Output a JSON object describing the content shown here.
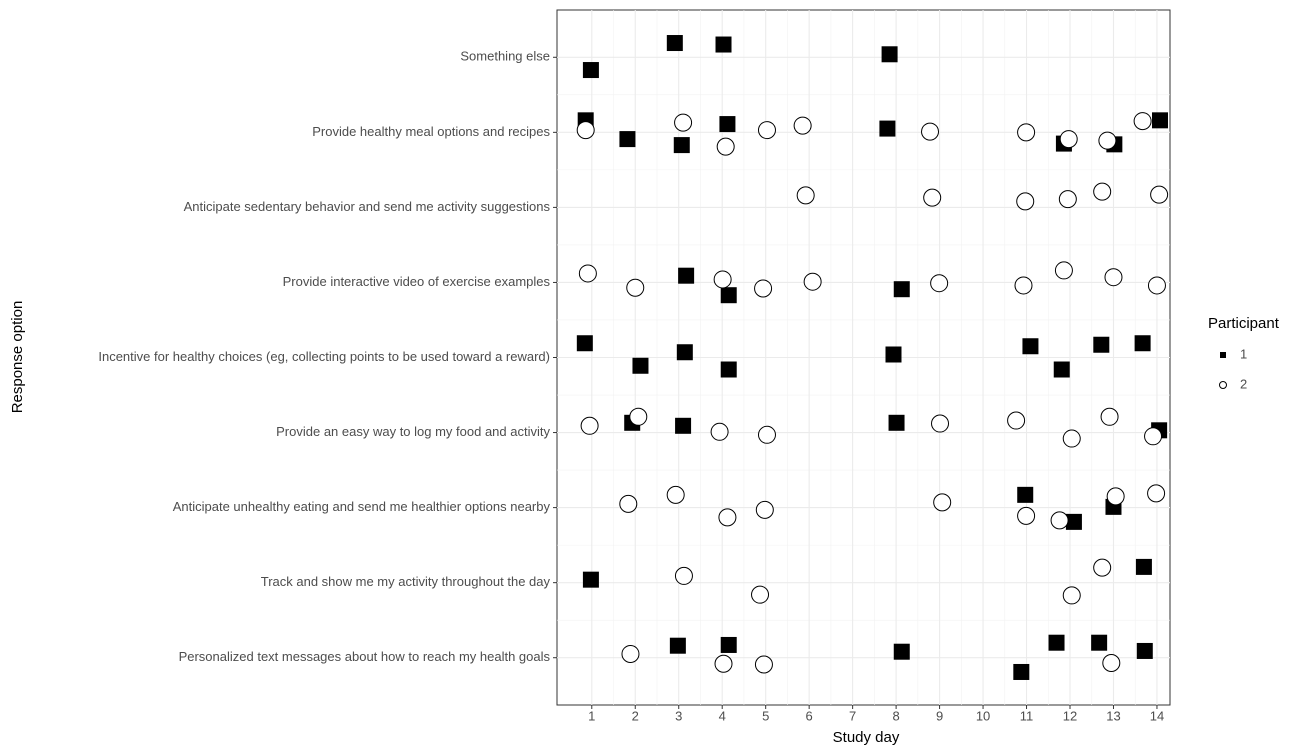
{
  "chart_data": {
    "type": "scatter",
    "xlabel": "Study day",
    "ylabel": "Response option",
    "legend_title": "Participant",
    "legend": "right",
    "grid": true,
    "xlim": [
      0.2,
      14.3
    ],
    "xticks": [
      1,
      2,
      3,
      4,
      5,
      6,
      7,
      8,
      9,
      10,
      11,
      12,
      13,
      14
    ],
    "ylim": [
      0.37,
      9.63
    ],
    "yticks": [
      {
        "value": 1,
        "label": "Personalized text messages about how to reach my health goals"
      },
      {
        "value": 2,
        "label": "Track and show me my activity throughout the day"
      },
      {
        "value": 3,
        "label": "Anticipate unhealthy eating and send me healthier options nearby"
      },
      {
        "value": 4,
        "label": "Provide an easy way to log my food and activity"
      },
      {
        "value": 5,
        "label": "Incentive for healthy choices (eg, collecting points to be used toward a reward)"
      },
      {
        "value": 6,
        "label": "Provide interactive video of exercise examples"
      },
      {
        "value": 7,
        "label": "Anticipate sedentary behavior and send me activity suggestions"
      },
      {
        "value": 8,
        "label": "Provide healthy meal options and recipes"
      },
      {
        "value": 9,
        "label": "Something else"
      }
    ],
    "series": [
      {
        "name": "1",
        "color": "#000000",
        "marker": "square",
        "x": [
          2.91,
          4.03,
          7.85,
          0.98,
          0.86,
          1.82,
          3.07,
          4.12,
          7.8,
          11.86,
          13.02,
          14.07,
          3.17,
          4.15,
          8.13,
          0.84,
          2.12,
          3.14,
          4.15,
          7.94,
          11.09,
          11.81,
          12.72,
          13.67,
          1.93,
          3.1,
          8.01,
          14.05,
          10.97,
          12.09,
          13.0,
          0.98,
          13.7,
          2.98,
          4.15,
          8.13,
          11.69,
          12.67,
          13.72,
          10.88
        ],
        "y": [
          9.19,
          9.17,
          9.04,
          8.83,
          8.16,
          7.91,
          7.83,
          8.11,
          8.05,
          7.85,
          7.84,
          8.16,
          6.09,
          5.83,
          5.91,
          5.19,
          4.89,
          5.07,
          4.84,
          5.04,
          5.15,
          4.84,
          5.17,
          5.19,
          4.13,
          4.09,
          4.13,
          4.03,
          3.17,
          2.81,
          3.01,
          2.04,
          2.21,
          1.16,
          1.17,
          1.08,
          1.2,
          1.2,
          1.09,
          0.81
        ]
      },
      {
        "name": "2",
        "color": "#000000",
        "marker": "circle-open",
        "x": [
          0.86,
          3.1,
          4.08,
          5.03,
          5.85,
          8.78,
          10.99,
          11.97,
          12.86,
          13.67,
          5.92,
          8.83,
          10.97,
          11.95,
          12.74,
          14.05,
          0.91,
          2.0,
          4.01,
          4.94,
          6.08,
          8.99,
          10.93,
          11.86,
          13.0,
          14.0,
          0.95,
          2.07,
          3.94,
          5.03,
          9.01,
          10.76,
          12.04,
          12.91,
          13.91,
          1.84,
          2.93,
          4.12,
          4.98,
          9.06,
          10.99,
          11.76,
          13.05,
          13.98,
          3.12,
          4.87,
          12.74,
          12.04,
          1.89,
          4.03,
          4.96,
          12.95
        ],
        "y": [
          8.03,
          8.13,
          7.81,
          8.03,
          8.09,
          8.01,
          8.0,
          7.91,
          7.89,
          8.15,
          7.16,
          7.13,
          7.08,
          7.11,
          7.21,
          7.17,
          6.12,
          5.93,
          6.04,
          5.92,
          6.01,
          5.99,
          5.96,
          6.16,
          6.07,
          5.96,
          4.09,
          4.21,
          4.01,
          3.97,
          4.12,
          4.16,
          3.92,
          4.21,
          3.95,
          3.05,
          3.17,
          2.87,
          2.97,
          3.07,
          2.89,
          2.83,
          3.15,
          3.19,
          2.09,
          1.84,
          2.2,
          1.83,
          1.05,
          0.92,
          0.91,
          0.93
        ]
      }
    ]
  }
}
